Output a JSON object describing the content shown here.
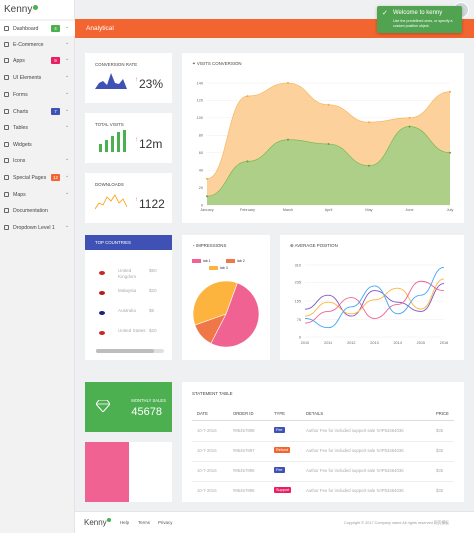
{
  "app": {
    "logo": "Kenny"
  },
  "sidebar": {
    "items": [
      {
        "label": "Dashboard",
        "badge": "4",
        "badge_color": "#4caf50",
        "chevron": true,
        "active": true
      },
      {
        "label": "E-Commerce",
        "chevron": true
      },
      {
        "label": "Apps",
        "badge": "9",
        "badge_color": "#e91e63",
        "chevron": true
      },
      {
        "label": "UI Elements",
        "chevron": true
      },
      {
        "label": "Forms",
        "chevron": true
      },
      {
        "label": "Charts",
        "badge": "7",
        "badge_color": "#3f51b5",
        "chevron": true
      },
      {
        "label": "Tables",
        "chevron": true
      },
      {
        "label": "Widgets",
        "chevron": false
      },
      {
        "label": "Icons",
        "chevron": true
      },
      {
        "label": "Special Pages",
        "badge": "12",
        "badge_color": "#f26530",
        "chevron": true
      },
      {
        "label": "Maps",
        "chevron": true
      },
      {
        "label": "Documentation",
        "chevron": false
      },
      {
        "label": "Dropdown Level 1",
        "chevron": true
      }
    ]
  },
  "header": {
    "title": "Analytical"
  },
  "toast": {
    "title": "Welcome to kenny",
    "body": "Use the predefined ones, or specify a custom position object."
  },
  "stats": [
    {
      "title": "Conversion Rate",
      "value": "23%",
      "color": "#3f51b5"
    },
    {
      "title": "Total Visits",
      "value": "12m",
      "color": "#4caf50"
    },
    {
      "title": "Downloads",
      "value": "1122",
      "color": "#ff9800"
    }
  ],
  "visits": {
    "title": "Visits Conversion",
    "months": [
      "January",
      "February",
      "March",
      "April",
      "May",
      "June",
      "July"
    ],
    "yticks": [
      "0",
      "20",
      "40",
      "60",
      "80",
      "100",
      "120",
      "140"
    ],
    "chart_data": {
      "type": "area",
      "categories": [
        "January",
        "February",
        "March",
        "April",
        "May",
        "June",
        "July"
      ],
      "ylim": [
        0,
        140
      ],
      "series": [
        {
          "values": [
            30,
            125,
            140,
            115,
            95,
            100,
            130
          ],
          "color": "#fcc98a"
        },
        {
          "values": [
            10,
            50,
            75,
            70,
            45,
            90,
            60
          ],
          "color": "#9fcf85"
        }
      ]
    }
  },
  "countries": {
    "title": "Top Countries",
    "rows": [
      {
        "name": "United Kingdom",
        "value": "$50",
        "flag": "#c62828"
      },
      {
        "name": "Malaysia",
        "value": "$20",
        "flag": "#b71c1c"
      },
      {
        "name": "Australia",
        "value": "$5",
        "flag": "#1a237e"
      },
      {
        "name": "United States",
        "value": "$20",
        "flag": "#c62828"
      }
    ]
  },
  "impressions": {
    "title": "Impressions",
    "legend": [
      "lab 1",
      "lab 2",
      "lab 3"
    ],
    "chart_data": {
      "type": "pie",
      "categories": [
        "lab 1",
        "lab 2",
        "lab 3"
      ],
      "values": [
        52,
        12,
        36
      ],
      "colors": [
        "#f06292",
        "#f07848",
        "#fdb43e"
      ]
    }
  },
  "avgpos": {
    "title": "Average Position",
    "xticks": [
      "2010",
      "2011",
      "2012",
      "2013",
      "2014",
      "2015",
      "2016"
    ],
    "yticks": [
      "0",
      "75",
      "155",
      "235",
      "310"
    ],
    "chart_data": {
      "type": "line",
      "x": [
        "2010",
        "2011",
        "2012",
        "2013",
        "2014",
        "2015",
        "2016"
      ],
      "ylim": [
        0,
        310
      ],
      "series": [
        {
          "values": [
            120,
            180,
            90,
            200,
            150,
            110,
            230
          ],
          "color": "#7e57c2"
        },
        {
          "values": [
            90,
            150,
            100,
            160,
            210,
            120,
            250
          ],
          "color": "#fdb43e"
        },
        {
          "values": [
            60,
            110,
            170,
            80,
            140,
            240,
            200
          ],
          "color": "#f06292"
        },
        {
          "values": [
            80,
            40,
            130,
            220,
            100,
            180,
            300
          ],
          "color": "#42a5f5"
        }
      ]
    }
  },
  "monthly": {
    "label": "Monthly Sales",
    "value": "45678"
  },
  "statement": {
    "title": "Statement Table",
    "headers": [
      "Date",
      "Order ID",
      "Type",
      "Details",
      "Price"
    ],
    "rows": [
      {
        "date": "10-7-2016",
        "order": "#85457898",
        "type": "Fee",
        "type_color": "#3f51b5",
        "details": "Author Fee for included support sale IVIP53464036",
        "price": "$35"
      },
      {
        "date": "10-7-2016",
        "order": "#85457897",
        "type": "Refund",
        "type_color": "#f26530",
        "details": "Author Fee for included support sale IVIP53464036",
        "price": "$35"
      },
      {
        "date": "10-7-2016",
        "order": "#85457896",
        "type": "Fee",
        "type_color": "#3f51b5",
        "details": "Author Fee for included support sale IVIP53464036",
        "price": "$35"
      },
      {
        "date": "10-7-2016",
        "order": "#85457895",
        "type": "Support",
        "type_color": "#e91e63",
        "details": "Author Fee for included support sale IVIP53464036",
        "price": "$35"
      }
    ]
  },
  "footer": {
    "logo": "Kenny",
    "links": [
      "Help",
      "Terms",
      "Privacy"
    ],
    "copyright": "Copyright © 2017 Company name All rights reserved 网页模板"
  }
}
